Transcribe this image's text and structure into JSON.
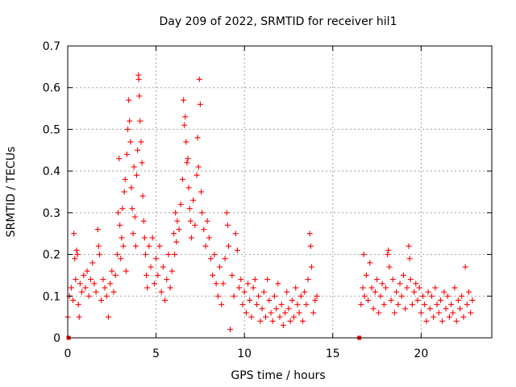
{
  "chart_data": {
    "type": "scatter",
    "title": "Day 209 of 2022, SRMTID for receiver hil1",
    "xlabel": "GPS time / hours",
    "ylabel": "SRMTID / TECUs",
    "xlim": [
      0,
      24
    ],
    "ylim": [
      0,
      0.7
    ],
    "xticks": [
      0,
      5,
      10,
      15,
      20
    ],
    "yticks": [
      0,
      0.1,
      0.2,
      0.3,
      0.4,
      0.5,
      0.6,
      0.7
    ],
    "xtick_labels": [
      "0",
      "5",
      "10",
      "15",
      "20"
    ],
    "ytick_labels": [
      "0",
      "0.1",
      "0.2",
      "0.3",
      "0.4",
      "0.5",
      "0.6",
      "0.7"
    ],
    "grid": true,
    "legend": "none",
    "marker": "plus",
    "color": "#ff0000",
    "zero_markers": [
      {
        "x": 0.05,
        "y": 0
      },
      {
        "x": 16.5,
        "y": 0
      }
    ],
    "data_gap": [
      14.2,
      16.6
    ],
    "series": [
      {
        "name": "SRMTID",
        "points": [
          [
            0.0,
            0.05
          ],
          [
            0.1,
            0.1
          ],
          [
            0.2,
            0.12
          ],
          [
            0.3,
            0.09
          ],
          [
            0.35,
            0.25
          ],
          [
            0.4,
            0.19
          ],
          [
            0.45,
            0.14
          ],
          [
            0.5,
            0.21
          ],
          [
            0.55,
            0.2
          ],
          [
            0.6,
            0.08
          ],
          [
            0.65,
            0.05
          ],
          [
            0.7,
            0.13
          ],
          [
            0.8,
            0.11
          ],
          [
            0.9,
            0.15
          ],
          [
            1.0,
            0.12
          ],
          [
            1.1,
            0.16
          ],
          [
            1.2,
            0.1
          ],
          [
            1.3,
            0.14
          ],
          [
            1.4,
            0.18
          ],
          [
            1.5,
            0.13
          ],
          [
            1.6,
            0.11
          ],
          [
            1.7,
            0.26
          ],
          [
            1.75,
            0.22
          ],
          [
            1.8,
            0.2
          ],
          [
            1.9,
            0.09
          ],
          [
            2.0,
            0.14
          ],
          [
            2.1,
            0.12
          ],
          [
            2.2,
            0.1
          ],
          [
            2.3,
            0.05
          ],
          [
            2.4,
            0.13
          ],
          [
            2.5,
            0.16
          ],
          [
            2.6,
            0.11
          ],
          [
            2.7,
            0.15
          ],
          [
            2.8,
            0.2
          ],
          [
            2.85,
            0.3
          ],
          [
            2.9,
            0.43
          ],
          [
            2.95,
            0.27
          ],
          [
            3.0,
            0.19
          ],
          [
            3.05,
            0.24
          ],
          [
            3.1,
            0.31
          ],
          [
            3.15,
            0.22
          ],
          [
            3.2,
            0.35
          ],
          [
            3.25,
            0.38
          ],
          [
            3.3,
            0.16
          ],
          [
            3.35,
            0.44
          ],
          [
            3.4,
            0.5
          ],
          [
            3.45,
            0.57
          ],
          [
            3.5,
            0.52
          ],
          [
            3.55,
            0.47
          ],
          [
            3.6,
            0.36
          ],
          [
            3.65,
            0.31
          ],
          [
            3.7,
            0.25
          ],
          [
            3.75,
            0.41
          ],
          [
            3.8,
            0.29
          ],
          [
            3.85,
            0.22
          ],
          [
            3.9,
            0.39
          ],
          [
            3.95,
            0.45
          ],
          [
            4.0,
            0.63
          ],
          [
            4.02,
            0.62
          ],
          [
            4.05,
            0.58
          ],
          [
            4.1,
            0.52
          ],
          [
            4.15,
            0.47
          ],
          [
            4.2,
            0.42
          ],
          [
            4.25,
            0.34
          ],
          [
            4.3,
            0.28
          ],
          [
            4.35,
            0.24
          ],
          [
            4.4,
            0.2
          ],
          [
            4.45,
            0.15
          ],
          [
            4.5,
            0.12
          ],
          [
            4.6,
            0.22
          ],
          [
            4.7,
            0.17
          ],
          [
            4.8,
            0.24
          ],
          [
            4.9,
            0.13
          ],
          [
            5.0,
            0.19
          ],
          [
            5.1,
            0.15
          ],
          [
            5.2,
            0.22
          ],
          [
            5.3,
            0.11
          ],
          [
            5.4,
            0.17
          ],
          [
            5.5,
            0.09
          ],
          [
            5.6,
            0.14
          ],
          [
            5.7,
            0.2
          ],
          [
            5.8,
            0.12
          ],
          [
            5.9,
            0.16
          ],
          [
            6.0,
            0.25
          ],
          [
            6.05,
            0.2
          ],
          [
            6.1,
            0.3
          ],
          [
            6.15,
            0.23
          ],
          [
            6.2,
            0.28
          ],
          [
            6.3,
            0.26
          ],
          [
            6.4,
            0.32
          ],
          [
            6.5,
            0.38
          ],
          [
            6.55,
            0.57
          ],
          [
            6.6,
            0.51
          ],
          [
            6.65,
            0.53
          ],
          [
            6.7,
            0.47
          ],
          [
            6.75,
            0.42
          ],
          [
            6.8,
            0.43
          ],
          [
            6.85,
            0.36
          ],
          [
            6.9,
            0.31
          ],
          [
            6.95,
            0.28
          ],
          [
            7.0,
            0.24
          ],
          [
            7.1,
            0.33
          ],
          [
            7.2,
            0.27
          ],
          [
            7.3,
            0.39
          ],
          [
            7.35,
            0.48
          ],
          [
            7.4,
            0.41
          ],
          [
            7.45,
            0.62
          ],
          [
            7.5,
            0.56
          ],
          [
            7.55,
            0.35
          ],
          [
            7.6,
            0.3
          ],
          [
            7.7,
            0.26
          ],
          [
            7.8,
            0.22
          ],
          [
            7.9,
            0.28
          ],
          [
            8.0,
            0.24
          ],
          [
            8.1,
            0.19
          ],
          [
            8.2,
            0.15
          ],
          [
            8.3,
            0.2
          ],
          [
            8.4,
            0.13
          ],
          [
            8.5,
            0.1
          ],
          [
            8.6,
            0.17
          ],
          [
            8.7,
            0.08
          ],
          [
            8.8,
            0.13
          ],
          [
            8.9,
            0.19
          ],
          [
            9.0,
            0.3
          ],
          [
            9.05,
            0.27
          ],
          [
            9.1,
            0.22
          ],
          [
            9.2,
            0.02
          ],
          [
            9.3,
            0.15
          ],
          [
            9.4,
            0.1
          ],
          [
            9.5,
            0.25
          ],
          [
            9.6,
            0.21
          ],
          [
            9.7,
            0.12
          ],
          [
            9.8,
            0.14
          ],
          [
            9.9,
            0.08
          ],
          [
            10.0,
            0.11
          ],
          [
            10.1,
            0.06
          ],
          [
            10.2,
            0.13
          ],
          [
            10.3,
            0.09
          ],
          [
            10.4,
            0.05
          ],
          [
            10.5,
            0.12
          ],
          [
            10.6,
            0.14
          ],
          [
            10.7,
            0.08
          ],
          [
            10.8,
            0.1
          ],
          [
            10.9,
            0.04
          ],
          [
            11.0,
            0.07
          ],
          [
            11.1,
            0.11
          ],
          [
            11.2,
            0.05
          ],
          [
            11.3,
            0.14
          ],
          [
            11.4,
            0.09
          ],
          [
            11.5,
            0.06
          ],
          [
            11.6,
            0.04
          ],
          [
            11.7,
            0.1
          ],
          [
            11.8,
            0.07
          ],
          [
            11.9,
            0.13
          ],
          [
            12.0,
            0.05
          ],
          [
            12.1,
            0.08
          ],
          [
            12.2,
            0.03
          ],
          [
            12.3,
            0.06
          ],
          [
            12.4,
            0.11
          ],
          [
            12.5,
            0.07
          ],
          [
            12.6,
            0.04
          ],
          [
            12.7,
            0.09
          ],
          [
            12.8,
            0.05
          ],
          [
            12.9,
            0.12
          ],
          [
            13.0,
            0.08
          ],
          [
            13.1,
            0.06
          ],
          [
            13.2,
            0.1
          ],
          [
            13.3,
            0.04
          ],
          [
            13.4,
            0.11
          ],
          [
            13.5,
            0.08
          ],
          [
            13.6,
            0.14
          ],
          [
            13.7,
            0.25
          ],
          [
            13.75,
            0.22
          ],
          [
            13.8,
            0.17
          ],
          [
            13.9,
            0.06
          ],
          [
            14.0,
            0.09
          ],
          [
            14.1,
            0.1
          ],
          [
            16.6,
            0.08
          ],
          [
            16.7,
            0.12
          ],
          [
            16.75,
            0.2
          ],
          [
            16.8,
            0.1
          ],
          [
            16.9,
            0.15
          ],
          [
            17.0,
            0.09
          ],
          [
            17.1,
            0.18
          ],
          [
            17.2,
            0.12
          ],
          [
            17.3,
            0.07
          ],
          [
            17.4,
            0.11
          ],
          [
            17.5,
            0.14
          ],
          [
            17.6,
            0.06
          ],
          [
            17.7,
            0.1
          ],
          [
            17.8,
            0.13
          ],
          [
            17.9,
            0.08
          ],
          [
            18.0,
            0.12
          ],
          [
            18.1,
            0.2
          ],
          [
            18.15,
            0.21
          ],
          [
            18.2,
            0.17
          ],
          [
            18.3,
            0.09
          ],
          [
            18.4,
            0.14
          ],
          [
            18.5,
            0.06
          ],
          [
            18.6,
            0.11
          ],
          [
            18.7,
            0.08
          ],
          [
            18.8,
            0.13
          ],
          [
            18.9,
            0.1
          ],
          [
            19.0,
            0.15
          ],
          [
            19.1,
            0.07
          ],
          [
            19.2,
            0.12
          ],
          [
            19.3,
            0.22
          ],
          [
            19.35,
            0.19
          ],
          [
            19.4,
            0.14
          ],
          [
            19.5,
            0.08
          ],
          [
            19.6,
            0.11
          ],
          [
            19.7,
            0.13
          ],
          [
            19.8,
            0.09
          ],
          [
            19.9,
            0.12
          ],
          [
            20.0,
            0.06
          ],
          [
            20.1,
            0.1
          ],
          [
            20.2,
            0.08
          ],
          [
            20.3,
            0.04
          ],
          [
            20.4,
            0.11
          ],
          [
            20.5,
            0.07
          ],
          [
            20.6,
            0.1
          ],
          [
            20.7,
            0.05
          ],
          [
            20.8,
            0.12
          ],
          [
            20.9,
            0.08
          ],
          [
            21.0,
            0.06
          ],
          [
            21.1,
            0.09
          ],
          [
            21.2,
            0.04
          ],
          [
            21.3,
            0.11
          ],
          [
            21.4,
            0.07
          ],
          [
            21.5,
            0.1
          ],
          [
            21.6,
            0.05
          ],
          [
            21.7,
            0.08
          ],
          [
            21.8,
            0.06
          ],
          [
            21.9,
            0.12
          ],
          [
            22.0,
            0.04
          ],
          [
            22.1,
            0.09
          ],
          [
            22.2,
            0.07
          ],
          [
            22.3,
            0.1
          ],
          [
            22.4,
            0.05
          ],
          [
            22.5,
            0.17
          ],
          [
            22.6,
            0.08
          ],
          [
            22.7,
            0.11
          ],
          [
            22.8,
            0.06
          ],
          [
            22.9,
            0.09
          ]
        ]
      }
    ]
  }
}
